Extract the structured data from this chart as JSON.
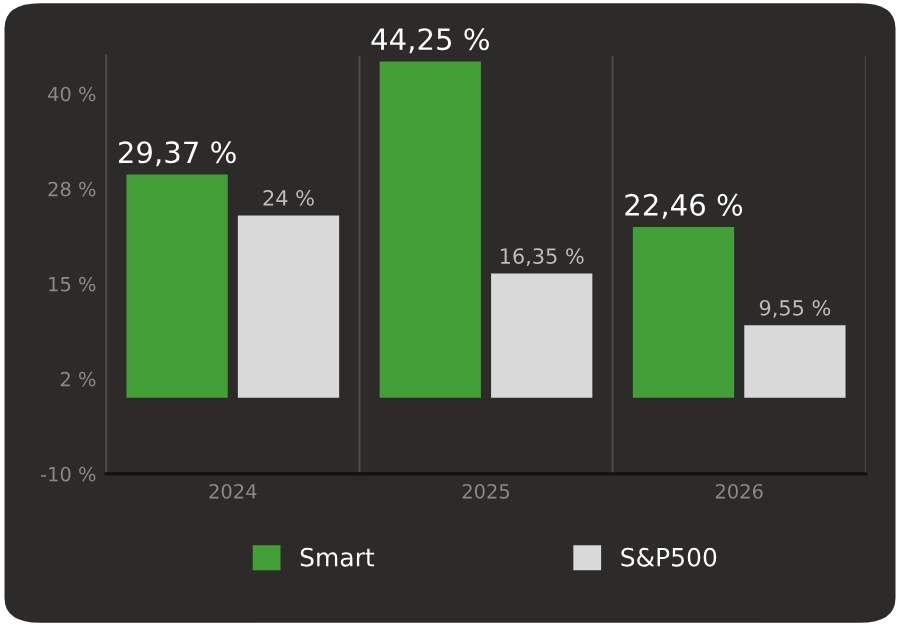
{
  "chart_data": {
    "type": "bar",
    "categories": [
      "2024",
      "2025",
      "2026"
    ],
    "series": [
      {
        "name": "Smart",
        "color": "#43a038",
        "values": [
          29.37,
          44.25,
          22.46
        ],
        "value_labels": [
          "29,37 %",
          "44,25 %",
          "22,46 %"
        ]
      },
      {
        "name": "S&P500",
        "color": "#d9d9d9",
        "values": [
          24,
          16.35,
          9.55
        ],
        "value_labels": [
          "24 %",
          "16,35 %",
          "9,55 %"
        ]
      }
    ],
    "ylim": [
      -10,
      45
    ],
    "yticks": [
      {
        "value": -10,
        "label": "-10 %"
      },
      {
        "value": 2.5,
        "label": "2 %"
      },
      {
        "value": 15,
        "label": "15 %"
      },
      {
        "value": 27.5,
        "label": "28 %"
      },
      {
        "value": 40,
        "label": "40 %"
      }
    ],
    "grid": "x",
    "legend": "bottom"
  }
}
